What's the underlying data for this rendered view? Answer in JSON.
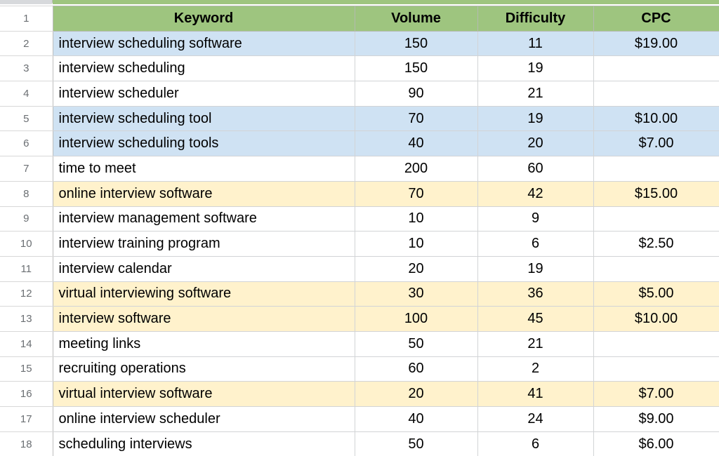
{
  "colors": {
    "header_green": "#9ec57f",
    "highlight_blue": "#cfe2f3",
    "highlight_yellow": "#fff2cc",
    "row_white": "#ffffff"
  },
  "table": {
    "header_row_num": "1",
    "columns": [
      "Keyword",
      "Volume",
      "Difficulty",
      "CPC"
    ],
    "rows": [
      {
        "num": "2",
        "cells": [
          "interview scheduling software",
          "150",
          "11",
          "$19.00"
        ],
        "highlight": "blue"
      },
      {
        "num": "3",
        "cells": [
          "interview scheduling",
          "150",
          "19",
          ""
        ],
        "highlight": "none"
      },
      {
        "num": "4",
        "cells": [
          "interview scheduler",
          "90",
          "21",
          ""
        ],
        "highlight": "none"
      },
      {
        "num": "5",
        "cells": [
          "interview scheduling tool",
          "70",
          "19",
          "$10.00"
        ],
        "highlight": "blue"
      },
      {
        "num": "6",
        "cells": [
          "interview scheduling tools",
          "40",
          "20",
          "$7.00"
        ],
        "highlight": "blue"
      },
      {
        "num": "7",
        "cells": [
          "time to meet",
          "200",
          "60",
          ""
        ],
        "highlight": "none"
      },
      {
        "num": "8",
        "cells": [
          "online interview software",
          "70",
          "42",
          "$15.00"
        ],
        "highlight": "yellow"
      },
      {
        "num": "9",
        "cells": [
          "interview management software",
          "10",
          "9",
          ""
        ],
        "highlight": "none"
      },
      {
        "num": "10",
        "cells": [
          "interview training program",
          "10",
          "6",
          "$2.50"
        ],
        "highlight": "none"
      },
      {
        "num": "11",
        "cells": [
          "interview calendar",
          "20",
          "19",
          ""
        ],
        "highlight": "none"
      },
      {
        "num": "12",
        "cells": [
          "virtual interviewing software",
          "30",
          "36",
          "$5.00"
        ],
        "highlight": "yellow"
      },
      {
        "num": "13",
        "cells": [
          "interview software",
          "100",
          "45",
          "$10.00"
        ],
        "highlight": "yellow"
      },
      {
        "num": "14",
        "cells": [
          "meeting links",
          "50",
          "21",
          ""
        ],
        "highlight": "none"
      },
      {
        "num": "15",
        "cells": [
          "recruiting operations",
          "60",
          "2",
          ""
        ],
        "highlight": "none"
      },
      {
        "num": "16",
        "cells": [
          "virtual interview software",
          "20",
          "41",
          "$7.00"
        ],
        "highlight": "yellow"
      },
      {
        "num": "17",
        "cells": [
          "online interview scheduler",
          "40",
          "24",
          "$9.00"
        ],
        "highlight": "none"
      },
      {
        "num": "18",
        "cells": [
          "scheduling interviews",
          "50",
          "6",
          "$6.00"
        ],
        "highlight": "none"
      }
    ]
  }
}
